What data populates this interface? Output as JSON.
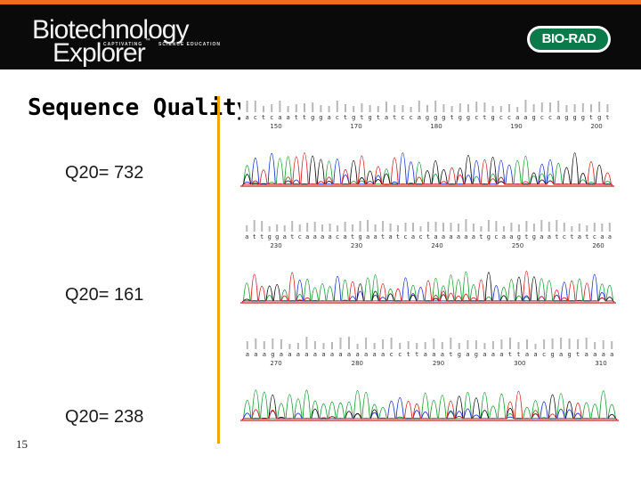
{
  "header": {
    "logo_line1": "Biotechnology",
    "logo_line2": "Explorer",
    "logo_tm": "™",
    "tagline_left": "CAPTIVATING",
    "tagline_right": "SCIENCE EDUCATION",
    "brand": "BIO-RAD",
    "colors": {
      "bar": "#0a0a0a",
      "stripe": "#f26b1d",
      "brand_green": "#0a7a4a"
    }
  },
  "slide": {
    "title": "Sequence Quality",
    "page_number": "15",
    "accent_color": "#f2a400"
  },
  "scores": [
    {
      "label": "Q20= 732"
    },
    {
      "label": "Q20= 161"
    },
    {
      "label": "Q20= 238"
    }
  ],
  "traces": [
    {
      "name": "chromatogram-1",
      "bases": "actcaattggactgtgtatccagggtggctgccaagccagggtgt",
      "positions": [
        "150",
        "170",
        "180",
        "190",
        "200"
      ],
      "baseline": "#cc2222"
    },
    {
      "name": "chromatogram-2",
      "bases": "attggatcaaaacatgaatatcactaaaaaatgcaagtgaatctatcaa",
      "positions": [
        "230",
        "230",
        "240",
        "250",
        "260"
      ],
      "baseline": "#cc2222"
    },
    {
      "name": "chromatogram-3",
      "bases": "aaagaaaaaaaaaaaaaccttaaatgagaaattaacgagtaaaa",
      "positions": [
        "270",
        "280",
        "290",
        "300",
        "310"
      ],
      "baseline": "#cc2222"
    }
  ],
  "trace_colors": {
    "A": "#1f9e3a",
    "C": "#1a2fd6",
    "G": "#111111",
    "T": "#d42222"
  }
}
